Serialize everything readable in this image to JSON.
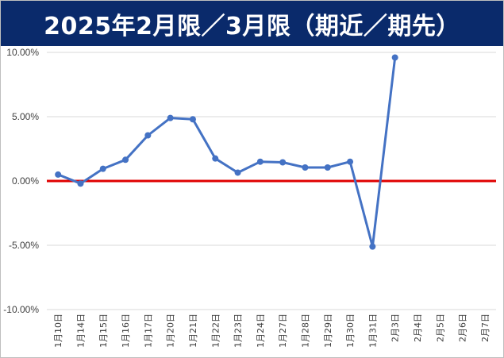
{
  "chart_data": {
    "type": "line",
    "title": "2025年2月限／3月限（期近／期先）",
    "xlabel": "",
    "ylabel": "",
    "categories": [
      "1月10日",
      "1月14日",
      "1月15日",
      "1月16日",
      "1月17日",
      "1月20日",
      "1月21日",
      "1月22日",
      "1月23日",
      "1月24日",
      "1月27日",
      "1月28日",
      "1月29日",
      "1月30日",
      "1月31日",
      "2月3日",
      "2月4日",
      "2月5日",
      "2月6日",
      "2月7日"
    ],
    "series": [
      {
        "values": [
          0.5,
          -0.2,
          0.95,
          1.65,
          3.55,
          4.9,
          4.8,
          1.75,
          0.65,
          1.5,
          1.45,
          1.05,
          1.05,
          1.5,
          -5.1,
          9.6,
          null,
          null,
          null,
          null
        ],
        "color": "#4472c4"
      }
    ],
    "reference_line": {
      "value": 0,
      "color": "#e00000"
    },
    "ylim": [
      -10,
      10
    ],
    "yticks": [
      10,
      5,
      0,
      -5,
      -10
    ],
    "ytick_labels": [
      "10.00%",
      "5.00%",
      "0.00%",
      "-5.00%",
      "-10.00%"
    ],
    "grid": "horizontal",
    "legend": "none",
    "colors": {
      "title_bg": "#0a2a6b",
      "title_text": "#ffffff",
      "gridline": "#d9d9d9"
    }
  }
}
